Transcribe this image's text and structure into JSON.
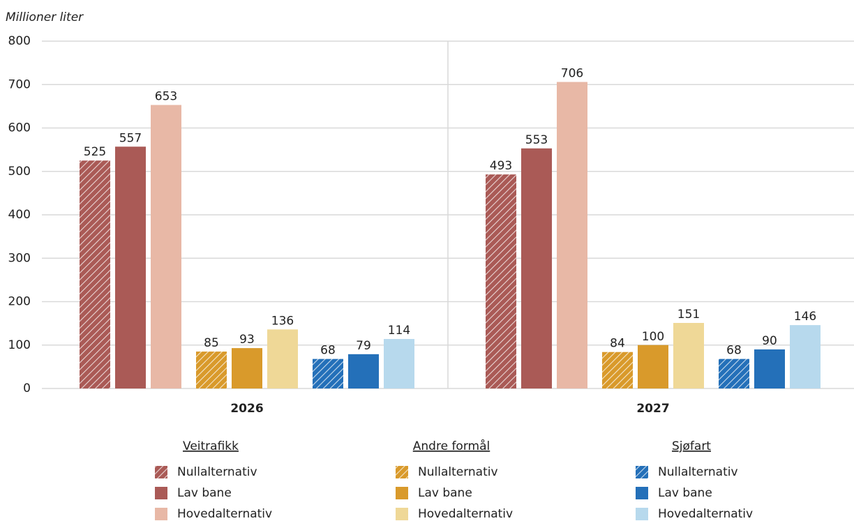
{
  "chart_data": {
    "type": "bar",
    "y_label": "Millioner liter",
    "categories": [
      "2026",
      "2027"
    ],
    "ylim": [
      0,
      800
    ],
    "yticks": [
      0,
      100,
      200,
      300,
      400,
      500,
      600,
      700,
      800
    ],
    "grid": true,
    "groups": [
      {
        "name": "Veitrafikk",
        "series": [
          {
            "name": "Nullalternativ",
            "color": "#aa5a56",
            "pattern": "hatch",
            "values": [
              525,
              493
            ]
          },
          {
            "name": "Lav bane",
            "color": "#aa5a56",
            "values": [
              557,
              553
            ]
          },
          {
            "name": "Hovedalternativ",
            "color": "#e8b8a6",
            "values": [
              653,
              706
            ]
          }
        ]
      },
      {
        "name": "Andre formål",
        "series": [
          {
            "name": "Nullalternativ",
            "color": "#d99a2b",
            "pattern": "hatch",
            "values": [
              85,
              84
            ]
          },
          {
            "name": "Lav bane",
            "color": "#d99a2b",
            "values": [
              93,
              100
            ]
          },
          {
            "name": "Hovedalternativ",
            "color": "#efd897",
            "values": [
              136,
              151
            ]
          }
        ]
      },
      {
        "name": "Sjøfart",
        "series": [
          {
            "name": "Nullalternativ",
            "color": "#2470b9",
            "pattern": "hatch",
            "values": [
              68,
              68
            ]
          },
          {
            "name": "Lav bane",
            "color": "#2470b9",
            "values": [
              79,
              90
            ]
          },
          {
            "name": "Hovedalternativ",
            "color": "#b7d9ed",
            "values": [
              114,
              146
            ]
          }
        ]
      }
    ]
  }
}
